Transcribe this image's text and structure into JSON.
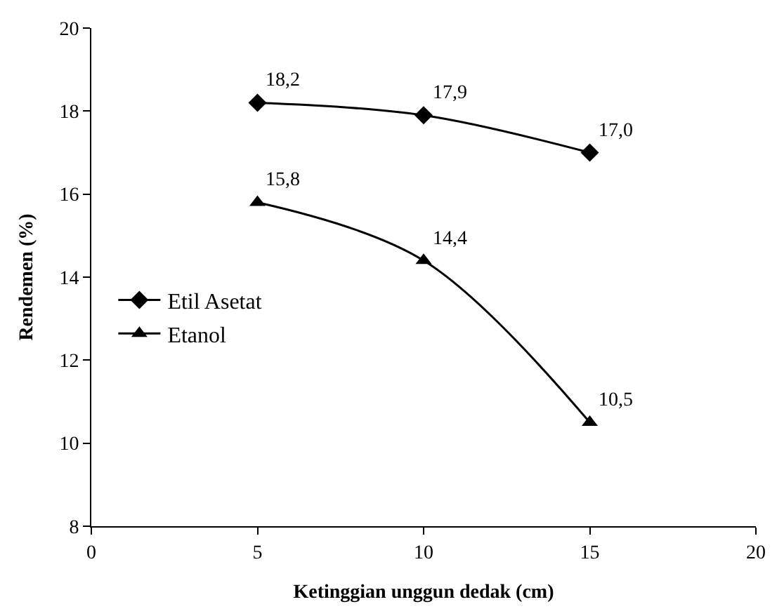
{
  "chart_data": {
    "type": "line",
    "xlabel": "Ketinggian unggun dedak (cm)",
    "ylabel": "Rendemen (%)",
    "x": [
      5,
      10,
      15
    ],
    "series": [
      {
        "name": "Etil Asetat",
        "color": "#000000",
        "marker": "diamond",
        "values": [
          18.2,
          17.9,
          17.0
        ],
        "value_labels": [
          "18,2",
          "17,9",
          "17,0"
        ]
      },
      {
        "name": "Etanol",
        "color": "#000000",
        "marker": "triangle",
        "values": [
          15.8,
          14.4,
          10.5
        ],
        "value_labels": [
          "15,8",
          "14,4",
          "10,5"
        ]
      }
    ],
    "xlim": [
      0,
      20
    ],
    "xticks": [
      0,
      5,
      10,
      15,
      20
    ],
    "ylim": [
      8,
      20
    ],
    "yticks": [
      8,
      10,
      12,
      14,
      16,
      18,
      20
    ],
    "legend": "left",
    "line_style": "solid"
  }
}
